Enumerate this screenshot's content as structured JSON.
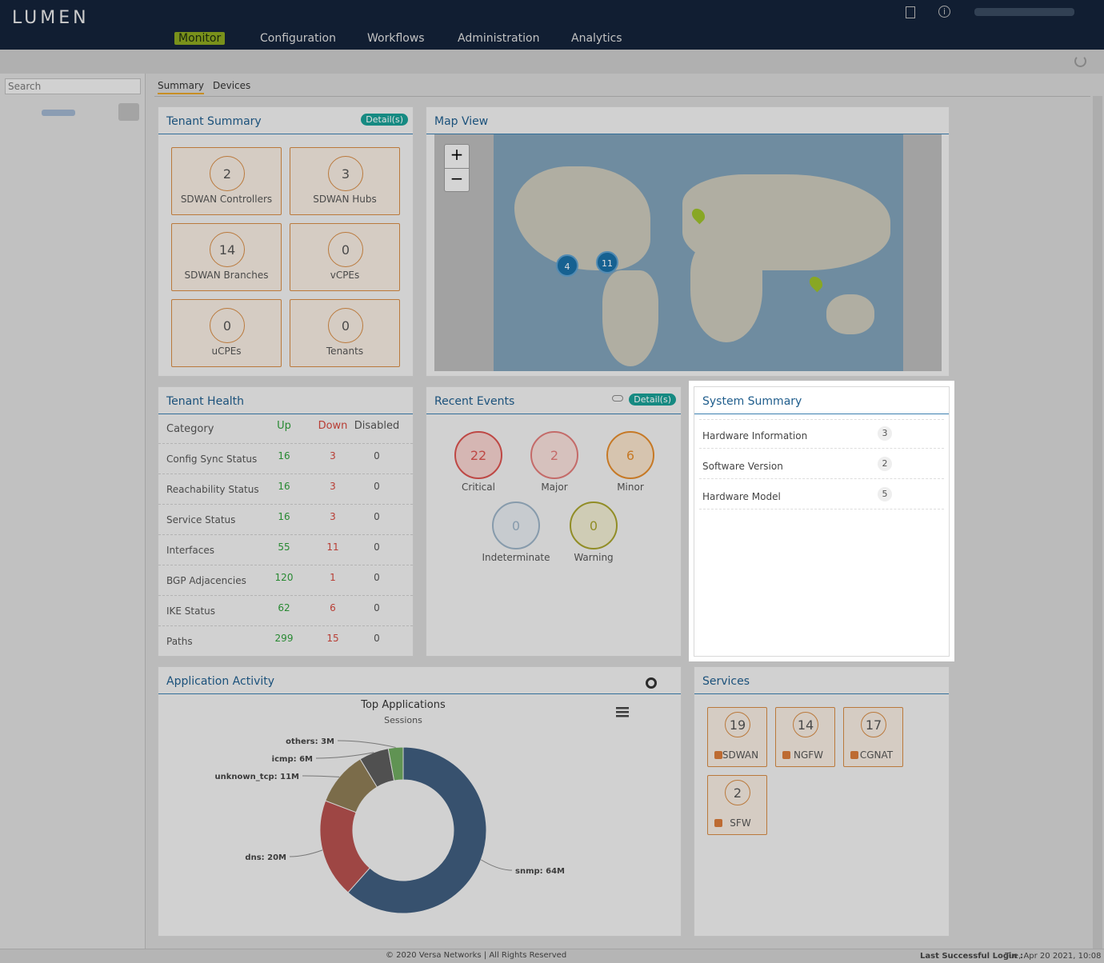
{
  "header": {
    "logo": "LUMEN",
    "nav": [
      "Monitor",
      "Configuration",
      "Workflows",
      "Administration",
      "Analytics"
    ]
  },
  "sidebar": {
    "search_placeholder": "Search"
  },
  "tabs": [
    "Summary",
    "Devices"
  ],
  "tenant_summary": {
    "title": "Tenant Summary",
    "details": "Detail(s)",
    "items": [
      {
        "value": 2,
        "label": "SDWAN Controllers"
      },
      {
        "value": 3,
        "label": "SDWAN Hubs"
      },
      {
        "value": 14,
        "label": "SDWAN Branches"
      },
      {
        "value": 0,
        "label": "vCPEs"
      },
      {
        "value": 0,
        "label": "uCPEs"
      },
      {
        "value": 0,
        "label": "Tenants"
      }
    ]
  },
  "map_view": {
    "title": "Map View",
    "zoom_in": "+",
    "zoom_out": "−",
    "clusters": [
      4,
      11
    ]
  },
  "tenant_health": {
    "title": "Tenant Health",
    "columns": [
      "Category",
      "Up",
      "Down",
      "Disabled"
    ],
    "rows": [
      [
        "Config Sync Status",
        16,
        3,
        0
      ],
      [
        "Reachability Status",
        16,
        3,
        0
      ],
      [
        "Service Status",
        16,
        3,
        0
      ],
      [
        "Interfaces",
        55,
        11,
        0
      ],
      [
        "BGP Adjacencies",
        120,
        1,
        0
      ],
      [
        "IKE Status",
        62,
        6,
        0
      ],
      [
        "Paths",
        299,
        15,
        0
      ]
    ]
  },
  "recent_events": {
    "title": "Recent Events",
    "details": "Detail(s)",
    "items": [
      {
        "value": 22,
        "label": "Critical"
      },
      {
        "value": 2,
        "label": "Major"
      },
      {
        "value": 6,
        "label": "Minor"
      },
      {
        "value": 0,
        "label": "Indeterminate"
      },
      {
        "value": 0,
        "label": "Warning"
      }
    ]
  },
  "system_summary": {
    "title": "System Summary",
    "rows": [
      {
        "label": "Hardware Information",
        "count": 3
      },
      {
        "label": "Software Version",
        "count": 2
      },
      {
        "label": "Hardware Model",
        "count": 5
      }
    ]
  },
  "application_activity": {
    "title": "Application Activity",
    "chart_data": {
      "type": "pie",
      "title": "Top Applications",
      "subtitle": "Sessions",
      "values": [
        64,
        20,
        11,
        6,
        3
      ],
      "value_labels": [
        "snmp: 64M",
        "dns: 20M",
        "unknown_tcp: 11M",
        "icmp: 6M",
        "others: 3M"
      ],
      "colors": [
        "#3f5d7e",
        "#b4504e",
        "#8c7b55",
        "#5c5c5c",
        "#6ea85f"
      ]
    }
  },
  "services": {
    "title": "Services",
    "items": [
      {
        "value": 19,
        "label": "SDWAN"
      },
      {
        "value": 14,
        "label": "NGFW"
      },
      {
        "value": 17,
        "label": "CGNAT"
      },
      {
        "value": 2,
        "label": "SFW"
      }
    ]
  },
  "footer": {
    "copyright": "© 2020 Versa Networks | All Rights Reserved",
    "last_login_label": "Last Successful Login :",
    "last_login": "Tue, Apr 20 2021, 10:08"
  }
}
